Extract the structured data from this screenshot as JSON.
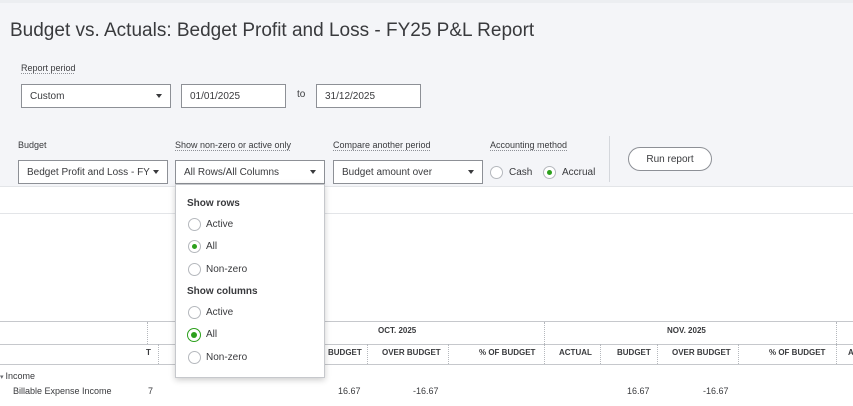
{
  "report": {
    "title": "Budget vs. Actuals: Bedget Profit and Loss - FY25 P&L Report"
  },
  "period": {
    "label": "Report period",
    "preset": "Custom",
    "start": "01/01/2025",
    "to": "to",
    "end": "31/12/2025"
  },
  "filters": {
    "budget_label": "Budget",
    "budget_value": "Bedget Profit and Loss - FY",
    "nonzero_label": "Show non-zero or active only",
    "nonzero_value": "All Rows/All Columns",
    "compare_label": "Compare another period",
    "compare_value": "Budget amount over",
    "method_label": "Accounting method",
    "cash": "Cash",
    "accrual": "Accrual",
    "run": "Run report"
  },
  "dropdown": {
    "rows_head": "Show rows",
    "cols_head": "Show columns",
    "active": "Active",
    "all": "All",
    "nonzero": "Non-zero"
  },
  "table": {
    "groups": [
      "OCT. 2025",
      "NOV. 2025"
    ],
    "headers": {
      "t": "T",
      "budget": "BUDGET",
      "over_budget": "OVER BUDGET",
      "pct_budget": "% OF BUDGET",
      "actual": "ACTUAL",
      "a": "A"
    },
    "section": "Income",
    "rows": [
      {
        "name": "Billable Expense Income",
        "t": "7",
        "oct_budget": "16.67",
        "oct_over": "-16.67",
        "nov_budget": "16.67",
        "nov_over": "-16.67"
      }
    ]
  },
  "colors": {
    "accent_green": "#2ca01c",
    "band_bg": "#f4f5f8"
  }
}
